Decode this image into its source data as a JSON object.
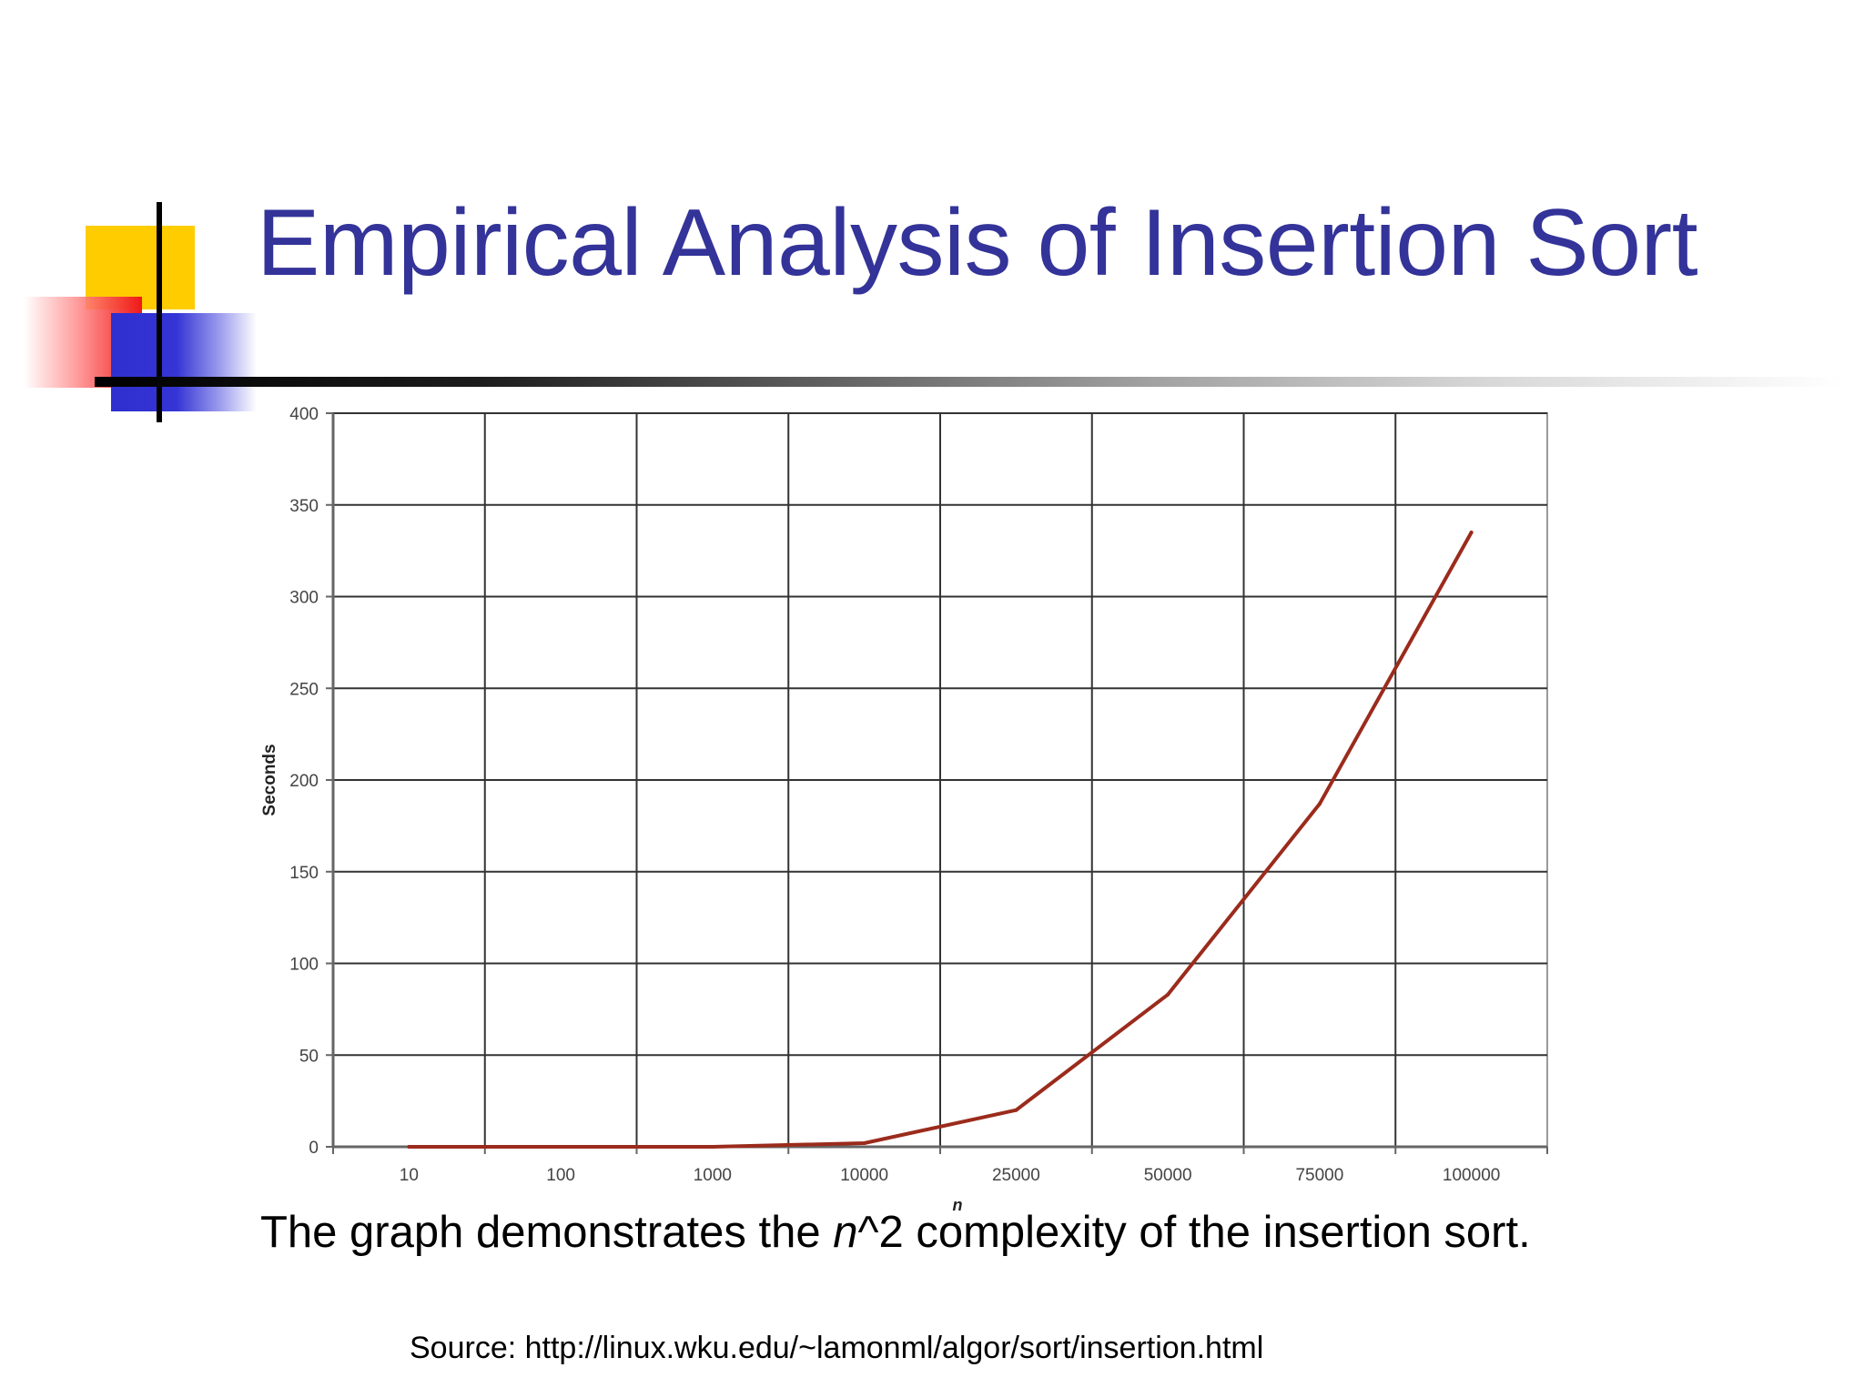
{
  "slide": {
    "title": "Empirical Analysis of Insertion Sort",
    "caption": {
      "before": "The graph demonstrates the ",
      "italic": "n",
      "after": "^2 complexity of the insertion sort."
    },
    "source": "Source: http://linux.wku.edu/~lamonml/algor/sort/insertion.html"
  },
  "colors": {
    "title": "#333399",
    "line": "#9b2b1c",
    "deco_yellow": "#ffcc00",
    "deco_red": "#f01818",
    "deco_blue": "#3333cc"
  },
  "chart_data": {
    "type": "line",
    "title": "",
    "xlabel": "n",
    "ylabel": "Seconds",
    "categories": [
      "10",
      "100",
      "1000",
      "10000",
      "25000",
      "50000",
      "75000",
      "100000"
    ],
    "series": [
      {
        "values": [
          0,
          0,
          0,
          2,
          20,
          83,
          187,
          335
        ]
      }
    ],
    "ylim": [
      0,
      400
    ],
    "yticks": [
      0,
      50,
      100,
      150,
      200,
      250,
      300,
      350,
      400
    ],
    "grid": true,
    "legend": "none"
  }
}
